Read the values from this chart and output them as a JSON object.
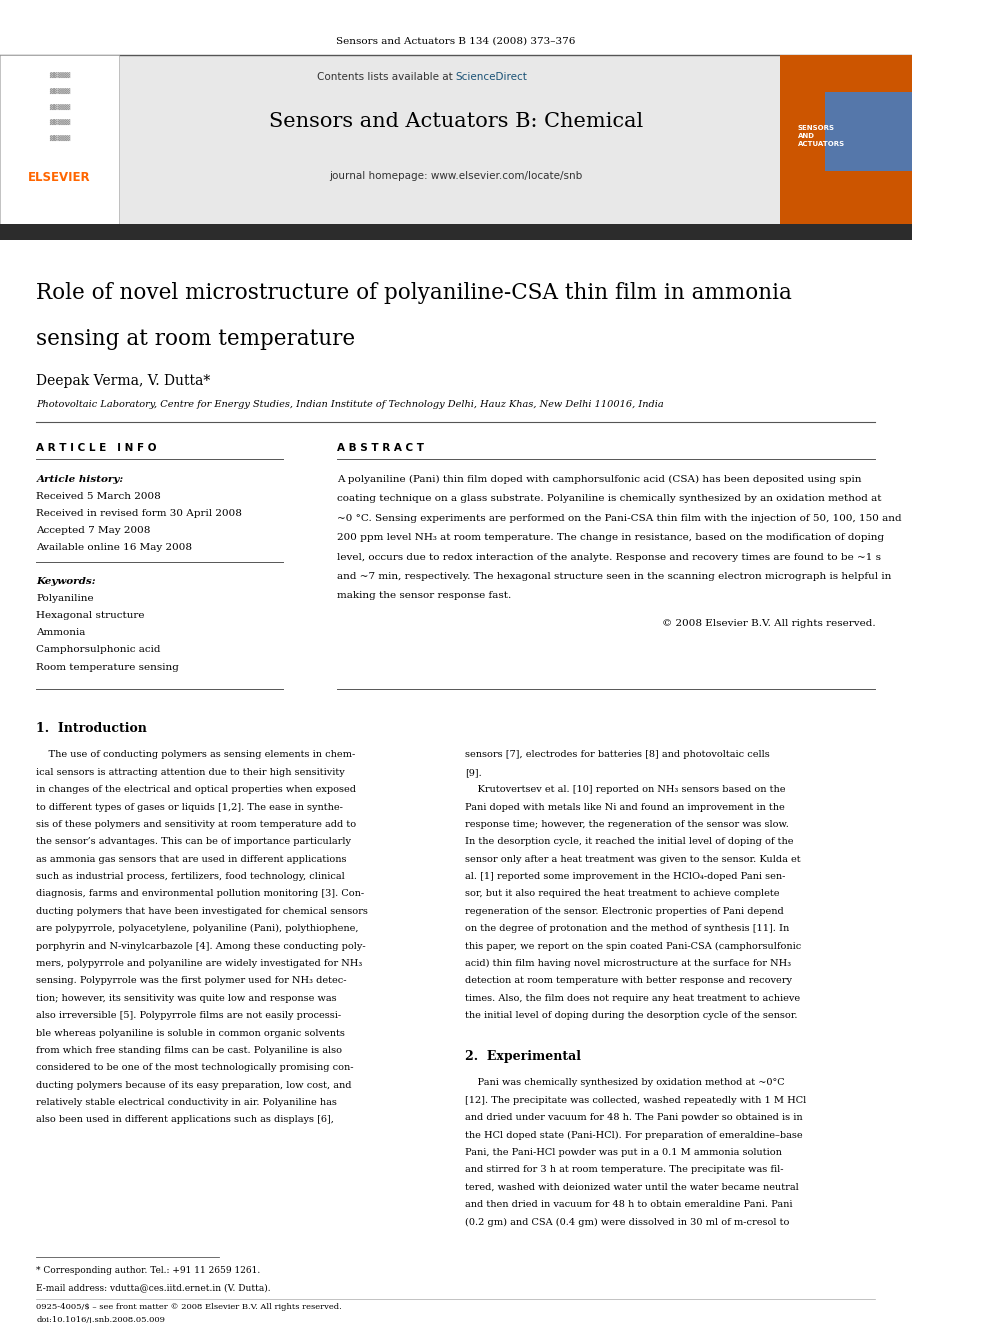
{
  "page_width": 9.92,
  "page_height": 13.23,
  "bg_color": "#ffffff",
  "top_citation": "Sensors and Actuators B 134 (2008) 373–376",
  "journal_name": "Sensors and Actuators B: Chemical",
  "contents_text": "Contents lists available at ScienceDirect",
  "sciencedirect_color": "#1a5276",
  "journal_homepage": "journal homepage: www.elsevier.com/locate/snb",
  "header_bg": "#e8e8e8",
  "dark_bar_color": "#2c2c2c",
  "elsevier_color": "#ff6600",
  "article_title_line1": "Role of novel microstructure of polyaniline-CSA thin film in ammonia",
  "article_title_line2": "sensing at room temperature",
  "authors": "Deepak Verma, V. Dutta*",
  "affiliation": "Photovoltaic Laboratory, Centre for Energy Studies, Indian Institute of Technology Delhi, Hauz Khas, New Delhi 110016, India",
  "article_info_header": "A R T I C L E   I N F O",
  "abstract_header": "A B S T R A C T",
  "article_history_label": "Article history:",
  "received": "Received 5 March 2008",
  "received_revised": "Received in revised form 30 April 2008",
  "accepted": "Accepted 7 May 2008",
  "available_online": "Available online 16 May 2008",
  "keywords_label": "Keywords:",
  "keywords": [
    "Polyaniline",
    "Hexagonal structure",
    "Ammonia",
    "Camphorsulphonic acid",
    "Room temperature sensing"
  ],
  "abstract_text": "A polyaniline (Pani) thin film doped with camphorsulfonic acid (CSA) has been deposited using spin\ncoating technique on a glass substrate. Polyaniline is chemically synthesized by an oxidation method at\n~0 °C. Sensing experiments are performed on the Pani-CSA thin film with the injection of 50, 100, 150 and\n200 ppm level NH₃ at room temperature. The change in resistance, based on the modification of doping\nlevel, occurs due to redox interaction of the analyte. Response and recovery times are found to be ~1 s\nand ~7 min, respectively. The hexagonal structure seen in the scanning electron micrograph is helpful in\nmaking the sensor response fast.",
  "copyright": "© 2008 Elsevier B.V. All rights reserved.",
  "intro_header": "1.  Introduction",
  "intro_col1": "    The use of conducting polymers as sensing elements in chem-\nical sensors is attracting attention due to their high sensitivity\nin changes of the electrical and optical properties when exposed\nto different types of gases or liquids [1,2]. The ease in synthe-\nsis of these polymers and sensitivity at room temperature add to\nthe sensor’s advantages. This can be of importance particularly\nas ammonia gas sensors that are used in different applications\nsuch as industrial process, fertilizers, food technology, clinical\ndiagnosis, farms and environmental pollution monitoring [3]. Con-\nducting polymers that have been investigated for chemical sensors\nare polypyrrole, polyacetylene, polyaniline (Pani), polythiophene,\nporphyrin and N-vinylcarbazole [4]. Among these conducting poly-\nmers, polypyrrole and polyaniline are widely investigated for NH₃\nsensing. Polypyrrole was the first polymer used for NH₃ detec-\ntion; however, its sensitivity was quite low and response was\nalso irreversible [5]. Polypyrrole films are not easily processi-\nble whereas polyaniline is soluble in common organic solvents\nfrom which free standing films can be cast. Polyaniline is also\nconsidered to be one of the most technologically promising con-\nducting polymers because of its easy preparation, low cost, and\nrelatively stable electrical conductivity in air. Polyaniline has\nalso been used in different applications such as displays [6],",
  "intro_col2": "sensors [7], electrodes for batteries [8] and photovoltaic cells\n[9].\n    Krutovertsev et al. [10] reported on NH₃ sensors based on the\nPani doped with metals like Ni and found an improvement in the\nresponse time; however, the regeneration of the sensor was slow.\nIn the desorption cycle, it reached the initial level of doping of the\nsensor only after a heat treatment was given to the sensor. Kulda et\nal. [1] reported some improvement in the HClO₄-doped Pani sen-\nsor, but it also required the heat treatment to achieve complete\nregeneration of the sensor. Electronic properties of Pani depend\non the degree of protonation and the method of synthesis [11]. In\nthis paper, we report on the spin coated Pani-CSA (camphorsulfonic\nacid) thin film having novel microstructure at the surface for NH₃\ndetection at room temperature with better response and recovery\ntimes. Also, the film does not require any heat treatment to achieve\nthe initial level of doping during the desorption cycle of the sensor.",
  "section2_header": "2.  Experimental",
  "section2_col2": "    Pani was chemically synthesized by oxidation method at ~0°C\n[12]. The precipitate was collected, washed repeatedly with 1 M HCl\nand dried under vacuum for 48 h. The Pani powder so obtained is in\nthe HCl doped state (Pani-HCl). For preparation of emeraldine–base\nPani, the Pani-HCl powder was put in a 0.1 M ammonia solution\nand stirred for 3 h at room temperature. The precipitate was fil-\ntered, washed with deionized water until the water became neutral\nand then dried in vacuum for 48 h to obtain emeraldine Pani. Pani\n(0.2 gm) and CSA (0.4 gm) were dissolved in 30 ml of m-cresol to",
  "footnote_star": "* Corresponding author. Tel.: +91 11 2659 1261.",
  "footnote_email": "E-mail address: vdutta@ces.iitd.ernet.in (V. Dutta).",
  "footer_text": "0925-4005/$ – see front matter © 2008 Elsevier B.V. All rights reserved.\ndoi:10.1016/j.snb.2008.05.009"
}
